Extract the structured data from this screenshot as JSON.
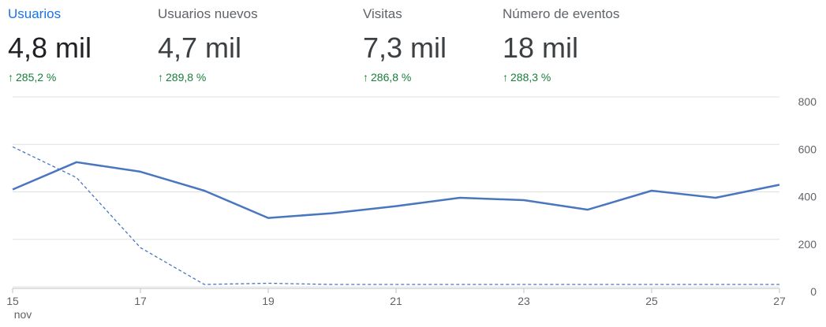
{
  "metrics": [
    {
      "label": "Usuarios",
      "value": "4,8 mil",
      "change": "285,2 %",
      "active": true
    },
    {
      "label": "Usuarios nuevos",
      "value": "4,7 mil",
      "change": "289,8 %",
      "active": false
    },
    {
      "label": "Visitas",
      "value": "7,3 mil",
      "change": "286,8 %",
      "active": false
    },
    {
      "label": "Número de eventos",
      "value": "18 mil",
      "change": "288,3 %",
      "active": false
    }
  ],
  "colors": {
    "accent": "#1a73e8",
    "line": "#4a76c0",
    "positive": "#188038",
    "grid": "#e0e0e0"
  },
  "chart_data": {
    "type": "line",
    "x": [
      "15",
      "16",
      "17",
      "18",
      "19",
      "20",
      "21",
      "22",
      "23",
      "24",
      "25",
      "26",
      "27"
    ],
    "x_ticks": [
      "15",
      "17",
      "19",
      "21",
      "23",
      "25",
      "27"
    ],
    "x_sublabel": "nov",
    "y_ticks": [
      "800",
      "600",
      "400",
      "200",
      "0"
    ],
    "ylim": [
      0,
      800
    ],
    "grid": true,
    "series": [
      {
        "style": "solid",
        "values": [
          410,
          525,
          485,
          405,
          290,
          310,
          340,
          375,
          365,
          325,
          405,
          375,
          430
        ]
      },
      {
        "style": "dashed",
        "values": [
          590,
          460,
          165,
          10,
          15,
          10,
          10,
          10,
          10,
          10,
          10,
          10,
          10
        ]
      }
    ]
  }
}
